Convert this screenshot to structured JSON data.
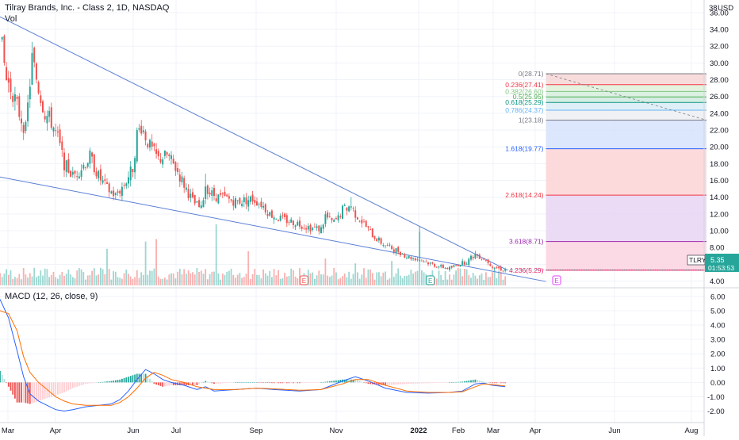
{
  "header": {
    "title": "Tilray Brands, Inc. - Class 2, 1D, NASDAQ",
    "vol_label": "Vol",
    "macd_label": "MACD (12, 26, close, 9)",
    "currency": "USD"
  },
  "price_badge": {
    "ticker": "TLRY",
    "price": "5.35",
    "countdown": "01:53:53",
    "color": "#26a69a"
  },
  "earnings_marker": "E",
  "colors": {
    "up": "#26a69a",
    "down": "#ef5350",
    "trendline": "#5b7fd6",
    "macd_line": "#2962ff",
    "signal_line": "#ff6d00"
  },
  "chart_data": [
    {
      "type": "candlestick",
      "x_labels": [
        "Mar",
        "Apr",
        "Jun",
        "Jul",
        "Sep",
        "Nov",
        "2022",
        "Feb",
        "Mar",
        "Apr",
        "Jun",
        "Aug"
      ],
      "y_ticks": [
        "36.00",
        "34.00",
        "32.00",
        "30.00",
        "28.00",
        "26.00",
        "24.00",
        "22.00",
        "20.00",
        "18.00",
        "16.00",
        "14.00",
        "12.00",
        "10.00",
        "8.00",
        "6.00",
        "4.00"
      ],
      "ylim": [
        3.2,
        37.5
      ],
      "close_path": [
        [
          0,
          33.5
        ],
        [
          3,
          28
        ],
        [
          6,
          26.5
        ],
        [
          9,
          24
        ],
        [
          12,
          22
        ],
        [
          15,
          30.5
        ],
        [
          18,
          27
        ],
        [
          21,
          24
        ],
        [
          24,
          23
        ],
        [
          27,
          21
        ],
        [
          30,
          18
        ],
        [
          34,
          16.5
        ],
        [
          38,
          17.5
        ],
        [
          42,
          18.8
        ],
        [
          46,
          16.5
        ],
        [
          50,
          15
        ],
        [
          54,
          14.2
        ],
        [
          58,
          15.5
        ],
        [
          62,
          17.5
        ],
        [
          64,
          21.5
        ],
        [
          66,
          22.5
        ],
        [
          70,
          20
        ],
        [
          74,
          18.5
        ],
        [
          78,
          19
        ],
        [
          82,
          17.5
        ],
        [
          86,
          15.5
        ],
        [
          90,
          13.5
        ],
        [
          94,
          12.5
        ],
        [
          96,
          15.5
        ],
        [
          98,
          14.5
        ],
        [
          102,
          14
        ],
        [
          106,
          13.8
        ],
        [
          110,
          13.5
        ],
        [
          114,
          13.6
        ],
        [
          118,
          13.8
        ],
        [
          122,
          13.2
        ],
        [
          126,
          12
        ],
        [
          130,
          11.5
        ],
        [
          134,
          11.2
        ],
        [
          138,
          11
        ],
        [
          142,
          10.6
        ],
        [
          146,
          10.3
        ],
        [
          150,
          10.2
        ],
        [
          152,
          11.8
        ],
        [
          154,
          11.2
        ],
        [
          156,
          11
        ],
        [
          158,
          11.5
        ],
        [
          160,
          12.5
        ],
        [
          164,
          13
        ],
        [
          166,
          12
        ],
        [
          170,
          10.8
        ],
        [
          174,
          9.5
        ],
        [
          178,
          8.6
        ],
        [
          182,
          8
        ],
        [
          186,
          7.6
        ],
        [
          190,
          6.9
        ],
        [
          194,
          6.7
        ],
        [
          198,
          6.4
        ],
        [
          202,
          6
        ],
        [
          206,
          5.7
        ],
        [
          210,
          5.5
        ],
        [
          214,
          6
        ],
        [
          218,
          6.3
        ],
        [
          222,
          7.2
        ],
        [
          226,
          6.7
        ],
        [
          228,
          6.3
        ],
        [
          230,
          5.8
        ],
        [
          233,
          5.5
        ],
        [
          235,
          5.35
        ]
      ],
      "spikes": [
        {
          "i": 15,
          "high": 32.5
        },
        {
          "i": 66,
          "high": 23.2
        },
        {
          "i": 96,
          "high": 16.8
        },
        {
          "i": 164,
          "high": 14
        },
        {
          "i": 196,
          "high": 10.5
        },
        {
          "i": 222,
          "high": 7.6
        }
      ],
      "last_price": 5.35,
      "trendlines": [
        {
          "name": "upper",
          "from": [
            0,
            35.5
          ],
          "to": [
            237,
            5.3
          ]
        },
        {
          "name": "lower",
          "from": [
            0,
            16.4
          ],
          "to": [
            255,
            3.95
          ]
        }
      ],
      "fibonacci": [
        {
          "label": "0(28.71)",
          "value": 28.71,
          "color": "#787b86"
        },
        {
          "label": "0.236(27.41)",
          "value": 27.41,
          "color": "#f23645"
        },
        {
          "label": "0.382(26.60)",
          "value": 26.6,
          "color": "#81c784"
        },
        {
          "label": "0.5(25.95)",
          "value": 25.95,
          "color": "#4caf50"
        },
        {
          "label": "0.618(25.29)",
          "value": 25.29,
          "color": "#089981"
        },
        {
          "label": "0.786(24.37)",
          "value": 24.37,
          "color": "#64b5f6"
        },
        {
          "label": "1(23.18)",
          "value": 23.18,
          "color": "#787b86"
        },
        {
          "label": "1.618(19.77)",
          "value": 19.77,
          "color": "#2962ff"
        },
        {
          "label": "2.618(14.24)",
          "value": 14.24,
          "color": "#f23645"
        },
        {
          "label": "3.618(8.71)",
          "value": 8.71,
          "color": "#9c27b0"
        },
        {
          "label": "4.236(5.29)",
          "value": 5.29,
          "color": "#e91e63"
        }
      ],
      "fib_fills": [
        "#f7d6d6",
        "#dff0d8",
        "#d6eedd",
        "#cfeadf",
        "#d9ecf6",
        "#eceef2",
        "#d6e2fb",
        "#fbd3d6",
        "#e8d5f3",
        "#fbd3e1"
      ],
      "fib_range": {
        "start_bar": 255,
        "end_bar": 330
      },
      "fib_diagonal": {
        "from": [
          255,
          28.71
        ],
        "to": [
          330,
          23.18
        ]
      },
      "earnings_bars": [
        142,
        201,
        260
      ],
      "volume_spikes": [
        {
          "i": 50,
          "v": 0.75
        },
        {
          "i": 68,
          "v": 0.9
        },
        {
          "i": 73,
          "v": 0.95
        },
        {
          "i": 101,
          "v": 1.25
        },
        {
          "i": 152,
          "v": 0.55
        },
        {
          "i": 166,
          "v": 0.45
        },
        {
          "i": 196,
          "v": 1.1
        },
        {
          "i": 116,
          "v": 0.7
        },
        {
          "i": 183,
          "v": 0.5
        }
      ]
    },
    {
      "type": "macd",
      "title": "MACD (12, 26, close, 9)",
      "y_ticks": [
        "6.00",
        "5.00",
        "4.00",
        "3.00",
        "2.00",
        "1.00",
        "0.00",
        "-1.00",
        "-2.00"
      ],
      "ylim": [
        -2.8,
        6.6
      ],
      "macd_path": [
        [
          0,
          5.8
        ],
        [
          4,
          4.5
        ],
        [
          8,
          2.2
        ],
        [
          11,
          0.4
        ],
        [
          14,
          -0.8
        ],
        [
          18,
          -1.3
        ],
        [
          22,
          -1.6
        ],
        [
          26,
          -1.9
        ],
        [
          30,
          -2.0
        ],
        [
          34,
          -1.9
        ],
        [
          40,
          -1.7
        ],
        [
          46,
          -1.6
        ],
        [
          52,
          -1.5
        ],
        [
          56,
          -1.2
        ],
        [
          60,
          -0.6
        ],
        [
          64,
          0.2
        ],
        [
          68,
          0.9
        ],
        [
          72,
          0.6
        ],
        [
          76,
          0.2
        ],
        [
          80,
          0.0
        ],
        [
          86,
          -0.2
        ],
        [
          92,
          -0.5
        ],
        [
          96,
          -0.3
        ],
        [
          100,
          -0.6
        ],
        [
          110,
          -0.5
        ],
        [
          120,
          -0.4
        ],
        [
          128,
          -0.5
        ],
        [
          140,
          -0.6
        ],
        [
          150,
          -0.5
        ],
        [
          160,
          0.1
        ],
        [
          166,
          0.4
        ],
        [
          172,
          0.1
        ],
        [
          180,
          -0.4
        ],
        [
          190,
          -0.7
        ],
        [
          200,
          -0.75
        ],
        [
          210,
          -0.7
        ],
        [
          216,
          -0.6
        ],
        [
          222,
          -0.1
        ],
        [
          226,
          -0.05
        ],
        [
          230,
          -0.2
        ],
        [
          236,
          -0.3
        ]
      ],
      "signal_path": [
        [
          0,
          5.0
        ],
        [
          4,
          4.8
        ],
        [
          8,
          3.6
        ],
        [
          11,
          1.8
        ],
        [
          14,
          0.7
        ],
        [
          18,
          0.0
        ],
        [
          22,
          -0.5
        ],
        [
          26,
          -1.0
        ],
        [
          30,
          -1.3
        ],
        [
          34,
          -1.5
        ],
        [
          40,
          -1.6
        ],
        [
          46,
          -1.6
        ],
        [
          52,
          -1.6
        ],
        [
          56,
          -1.4
        ],
        [
          60,
          -1.0
        ],
        [
          64,
          -0.4
        ],
        [
          68,
          0.3
        ],
        [
          72,
          0.7
        ],
        [
          76,
          0.5
        ],
        [
          80,
          0.2
        ],
        [
          86,
          0.0
        ],
        [
          92,
          -0.3
        ],
        [
          96,
          -0.4
        ],
        [
          100,
          -0.5
        ],
        [
          110,
          -0.5
        ],
        [
          120,
          -0.4
        ],
        [
          128,
          -0.45
        ],
        [
          140,
          -0.55
        ],
        [
          150,
          -0.5
        ],
        [
          160,
          -0.1
        ],
        [
          166,
          0.2
        ],
        [
          172,
          0.2
        ],
        [
          180,
          -0.2
        ],
        [
          190,
          -0.6
        ],
        [
          200,
          -0.7
        ],
        [
          210,
          -0.7
        ],
        [
          216,
          -0.65
        ],
        [
          222,
          -0.3
        ],
        [
          226,
          -0.1
        ],
        [
          230,
          -0.15
        ],
        [
          236,
          -0.25
        ]
      ]
    }
  ]
}
